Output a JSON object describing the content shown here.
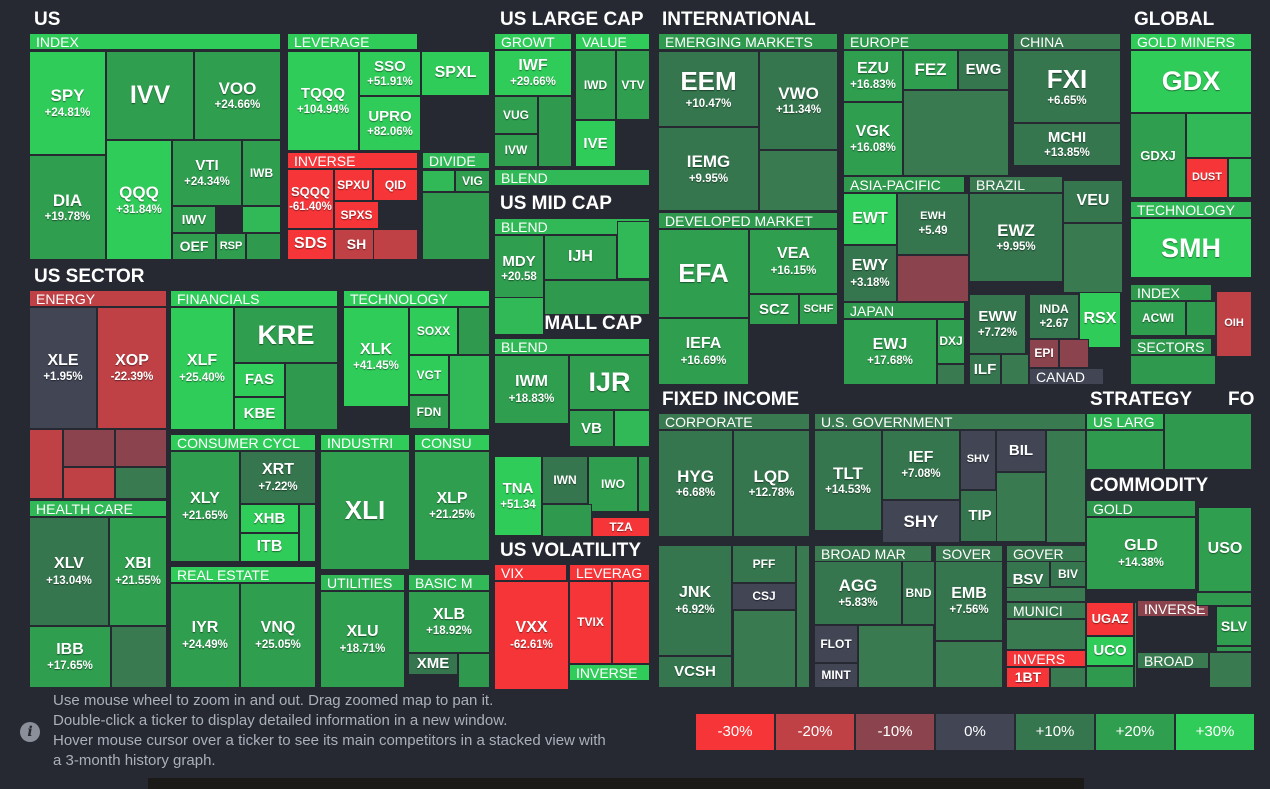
{
  "colors": {
    "bg": "#262932",
    "neg30": "#f63538",
    "neg20": "#bf4045",
    "neg10": "#8b444e",
    "zero": "#414554",
    "pos10": "#35764e",
    "pos20": "#2f9e4f",
    "pos30": "#30cc5a",
    "g1": "#3a7a50",
    "g2": "#2f9a4e",
    "g3": "#30b956",
    "g4": "#30cc5a"
  },
  "sections": [
    {
      "label": "US"
    },
    {
      "label": "US SECTOR"
    },
    {
      "label": "US LARGE CAP"
    },
    {
      "label": "US MID CAP"
    },
    {
      "label": "US SMALL CAP"
    },
    {
      "label": "US VOLATILITY"
    },
    {
      "label": "INTERNATIONAL"
    },
    {
      "label": "FIXED INCOME"
    },
    {
      "label": "GLOBAL"
    },
    {
      "label": "STRATEGY"
    },
    {
      "label": "FO"
    },
    {
      "label": "COMMODITY"
    }
  ],
  "subsections": [
    {
      "label": "INDEX"
    },
    {
      "label": "LEVERAGE"
    },
    {
      "label": "INVERSE"
    },
    {
      "label": "DIVIDE"
    },
    {
      "label": "ENERGY"
    },
    {
      "label": "FINANCIALS"
    },
    {
      "label": "TECHNOLOGY"
    },
    {
      "label": "CONSUMER CYCL"
    },
    {
      "label": "INDUSTRI"
    },
    {
      "label": "CONSU"
    },
    {
      "label": "HEALTH CARE"
    },
    {
      "label": "REAL ESTATE"
    },
    {
      "label": "UTILITIES"
    },
    {
      "label": "BASIC M"
    },
    {
      "label": "GROWT"
    },
    {
      "label": "VALUE"
    },
    {
      "label": "BLEND"
    },
    {
      "label": "BLEND"
    },
    {
      "label": "BLEND"
    },
    {
      "label": "VIX"
    },
    {
      "label": "LEVERAG"
    },
    {
      "label": "INVERSE"
    },
    {
      "label": "EMERGING MARKETS"
    },
    {
      "label": "EUROPE"
    },
    {
      "label": "CHINA"
    },
    {
      "label": "ASIA-PACIFIC"
    },
    {
      "label": "BRAZIL"
    },
    {
      "label": "DEVELOPED MARKET"
    },
    {
      "label": "JAPAN"
    },
    {
      "label": "CANAD"
    },
    {
      "label": "CORPORATE"
    },
    {
      "label": "U.S. GOVERNMENT"
    },
    {
      "label": "BROAD MAR"
    },
    {
      "label": "SOVER"
    },
    {
      "label": "GOVER"
    },
    {
      "label": "MUNICI"
    },
    {
      "label": "INVERS"
    },
    {
      "label": "GOLD MINERS"
    },
    {
      "label": "TECHNOLOGY"
    },
    {
      "label": "INDEX"
    },
    {
      "label": "SECTORS"
    },
    {
      "label": "US LARG"
    },
    {
      "label": "GOLD"
    },
    {
      "label": "INVERSE"
    },
    {
      "label": "BROAD"
    }
  ],
  "tiles": [
    {
      "t": "SPY",
      "p": "+24.81%",
      "c": "pos30"
    },
    {
      "t": "IVV",
      "p": "",
      "c": "pos20"
    },
    {
      "t": "VOO",
      "p": "+24.66%",
      "c": "pos20"
    },
    {
      "t": "DIA",
      "p": "+19.78%",
      "c": "pos20"
    },
    {
      "t": "QQQ",
      "p": "+31.84%",
      "c": "pos30"
    },
    {
      "t": "VTI",
      "p": "+24.34%",
      "c": "pos20"
    },
    {
      "t": "IWB",
      "p": "",
      "c": "pos20"
    },
    {
      "t": "IWV",
      "p": "",
      "c": "pos20"
    },
    {
      "t": "OEF",
      "p": "",
      "c": "pos20"
    },
    {
      "t": "RSP",
      "p": "",
      "c": "pos20"
    },
    {
      "t": "TQQQ",
      "p": "+104.94%",
      "c": "pos30"
    },
    {
      "t": "SSO",
      "p": "+51.91%",
      "c": "pos30"
    },
    {
      "t": "UPRO",
      "p": "+82.06%",
      "c": "pos30"
    },
    {
      "t": "SPXL",
      "p": "",
      "c": "pos30"
    },
    {
      "t": "SQQQ",
      "p": "-61.40%",
      "c": "neg30"
    },
    {
      "t": "SPXU",
      "p": "",
      "c": "neg30"
    },
    {
      "t": "QID",
      "p": "",
      "c": "neg30"
    },
    {
      "t": "SPXS",
      "p": "",
      "c": "neg30"
    },
    {
      "t": "SDS",
      "p": "",
      "c": "neg30"
    },
    {
      "t": "SH",
      "p": "",
      "c": "neg20"
    },
    {
      "t": "VIG",
      "p": "",
      "c": "pos20"
    },
    {
      "t": "XLE",
      "p": "+1.95%",
      "c": "zero"
    },
    {
      "t": "XOP",
      "p": "-22.39%",
      "c": "neg20"
    },
    {
      "t": "XLF",
      "p": "+25.40%",
      "c": "pos30"
    },
    {
      "t": "KRE",
      "p": "",
      "c": "pos20"
    },
    {
      "t": "FAS",
      "p": "",
      "c": "pos30"
    },
    {
      "t": "KBE",
      "p": "",
      "c": "pos30"
    },
    {
      "t": "XLK",
      "p": "+41.45%",
      "c": "pos30"
    },
    {
      "t": "SOXX",
      "p": "",
      "c": "pos30"
    },
    {
      "t": "VGT",
      "p": "",
      "c": "pos30"
    },
    {
      "t": "FDN",
      "p": "",
      "c": "pos20"
    },
    {
      "t": "XLY",
      "p": "+21.65%",
      "c": "pos20"
    },
    {
      "t": "XRT",
      "p": "+7.22%",
      "c": "pos10"
    },
    {
      "t": "XHB",
      "p": "",
      "c": "pos30"
    },
    {
      "t": "ITB",
      "p": "",
      "c": "pos30"
    },
    {
      "t": "XLI",
      "p": "",
      "c": "pos20"
    },
    {
      "t": "XLP",
      "p": "+21.25%",
      "c": "pos20"
    },
    {
      "t": "XLV",
      "p": "+13.04%",
      "c": "pos10"
    },
    {
      "t": "XBI",
      "p": "+21.55%",
      "c": "pos20"
    },
    {
      "t": "IBB",
      "p": "+17.65%",
      "c": "pos20"
    },
    {
      "t": "IYR",
      "p": "+24.49%",
      "c": "pos20"
    },
    {
      "t": "VNQ",
      "p": "+25.05%",
      "c": "pos20"
    },
    {
      "t": "XLU",
      "p": "+18.71%",
      "c": "pos20"
    },
    {
      "t": "XLB",
      "p": "+18.92%",
      "c": "pos20"
    },
    {
      "t": "XME",
      "p": "",
      "c": "pos10"
    },
    {
      "t": "IWF",
      "p": "+29.66%",
      "c": "pos30"
    },
    {
      "t": "VUG",
      "p": "",
      "c": "pos20"
    },
    {
      "t": "IVW",
      "p": "",
      "c": "pos20"
    },
    {
      "t": "IWD",
      "p": "",
      "c": "pos20"
    },
    {
      "t": "VTV",
      "p": "",
      "c": "pos20"
    },
    {
      "t": "IVE",
      "p": "",
      "c": "pos30"
    },
    {
      "t": "MDY",
      "p": "+20.58",
      "c": "pos20"
    },
    {
      "t": "IJH",
      "p": "",
      "c": "pos20"
    },
    {
      "t": "IWM",
      "p": "+18.83%",
      "c": "pos20"
    },
    {
      "t": "IJR",
      "p": "",
      "c": "pos20"
    },
    {
      "t": "VB",
      "p": "",
      "c": "pos20"
    },
    {
      "t": "TNA",
      "p": "+51.34",
      "c": "pos30"
    },
    {
      "t": "IWN",
      "p": "",
      "c": "pos10"
    },
    {
      "t": "IWO",
      "p": "",
      "c": "pos20"
    },
    {
      "t": "TZA",
      "p": "",
      "c": "neg30"
    },
    {
      "t": "VXX",
      "p": "-62.61%",
      "c": "neg30"
    },
    {
      "t": "TVIX",
      "p": "",
      "c": "neg30"
    },
    {
      "t": "EEM",
      "p": "+10.47%",
      "c": "pos10"
    },
    {
      "t": "VWO",
      "p": "+11.34%",
      "c": "pos10"
    },
    {
      "t": "IEMG",
      "p": "+9.95%",
      "c": "pos10"
    },
    {
      "t": "EZU",
      "p": "+16.83%",
      "c": "pos20"
    },
    {
      "t": "FEZ",
      "p": "",
      "c": "pos20"
    },
    {
      "t": "EWG",
      "p": "",
      "c": "pos10"
    },
    {
      "t": "VGK",
      "p": "+16.08%",
      "c": "pos20"
    },
    {
      "t": "FXI",
      "p": "+6.65%",
      "c": "pos10"
    },
    {
      "t": "MCHI",
      "p": "+13.85%",
      "c": "pos10"
    },
    {
      "t": "EWT",
      "p": "",
      "c": "pos30"
    },
    {
      "t": "EWH",
      "p": "+5.49",
      "c": "pos10"
    },
    {
      "t": "EWY",
      "p": "+3.18%",
      "c": "pos10"
    },
    {
      "t": "EWZ",
      "p": "+9.95%",
      "c": "pos10"
    },
    {
      "t": "VEU",
      "p": "",
      "c": "pos10"
    },
    {
      "t": "EFA",
      "p": "",
      "c": "pos20"
    },
    {
      "t": "VEA",
      "p": "+16.15%",
      "c": "pos20"
    },
    {
      "t": "IEFA",
      "p": "+16.69%",
      "c": "pos20"
    },
    {
      "t": "SCZ",
      "p": "",
      "c": "pos20"
    },
    {
      "t": "SCHF",
      "p": "",
      "c": "pos20"
    },
    {
      "t": "EWJ",
      "p": "+17.68%",
      "c": "pos20"
    },
    {
      "t": "DXJ",
      "p": "",
      "c": "pos20"
    },
    {
      "t": "EWW",
      "p": "+7.72%",
      "c": "pos10"
    },
    {
      "t": "INDA",
      "p": "+2.67",
      "c": "pos10"
    },
    {
      "t": "RSX",
      "p": "",
      "c": "pos30"
    },
    {
      "t": "EPI",
      "p": "",
      "c": "neg10"
    },
    {
      "t": "ILF",
      "p": "",
      "c": "pos10"
    },
    {
      "t": "HYG",
      "p": "+6.68%",
      "c": "pos10"
    },
    {
      "t": "LQD",
      "p": "+12.78%",
      "c": "pos10"
    },
    {
      "t": "PFF",
      "p": "",
      "c": "pos10"
    },
    {
      "t": "JNK",
      "p": "+6.92%",
      "c": "pos10"
    },
    {
      "t": "CSJ",
      "p": "",
      "c": "zero"
    },
    {
      "t": "VCSH",
      "p": "",
      "c": "pos10"
    },
    {
      "t": "TLT",
      "p": "+14.53%",
      "c": "pos10"
    },
    {
      "t": "IEF",
      "p": "+7.08%",
      "c": "pos10"
    },
    {
      "t": "SHY",
      "p": "",
      "c": "zero"
    },
    {
      "t": "SHV",
      "p": "",
      "c": "zero"
    },
    {
      "t": "BIL",
      "p": "",
      "c": "zero"
    },
    {
      "t": "TIP",
      "p": "",
      "c": "pos10"
    },
    {
      "t": "AGG",
      "p": "+5.83%",
      "c": "pos10"
    },
    {
      "t": "BND",
      "p": "",
      "c": "pos10"
    },
    {
      "t": "FLOT",
      "p": "",
      "c": "zero"
    },
    {
      "t": "MINT",
      "p": "",
      "c": "zero"
    },
    {
      "t": "EMB",
      "p": "+7.56%",
      "c": "pos10"
    },
    {
      "t": "BSV",
      "p": "",
      "c": "pos10"
    },
    {
      "t": "BIV",
      "p": "",
      "c": "pos10"
    },
    {
      "t": "1BT",
      "p": "",
      "c": "neg30"
    },
    {
      "t": "GDX",
      "p": "",
      "c": "pos30"
    },
    {
      "t": "GDXJ",
      "p": "",
      "c": "pos20"
    },
    {
      "t": "DUST",
      "p": "",
      "c": "neg30"
    },
    {
      "t": "SMH",
      "p": "",
      "c": "pos30"
    },
    {
      "t": "ACWI",
      "p": "",
      "c": "pos20"
    },
    {
      "t": "OIH",
      "p": "",
      "c": "neg20"
    },
    {
      "t": "GLD",
      "p": "+14.38%",
      "c": "pos20"
    },
    {
      "t": "USO",
      "p": "",
      "c": "pos20"
    },
    {
      "t": "UGAZ",
      "p": "",
      "c": "neg30"
    },
    {
      "t": "UCO",
      "p": "",
      "c": "pos30"
    },
    {
      "t": "SLV",
      "p": "",
      "c": "pos20"
    }
  ],
  "footer": {
    "info_icon": "i",
    "line1": "Use mouse wheel to zoom in and out. Drag zoomed map to pan it.",
    "line2": "Double-click a ticker to display detailed information in a new window.",
    "line3": "Hover mouse cursor over a ticker to see its main competitors in a stacked view with",
    "line4": "a 3-month history graph."
  },
  "legend": [
    {
      "label": "-30%",
      "c": "neg30"
    },
    {
      "label": "-20%",
      "c": "neg20"
    },
    {
      "label": "-10%",
      "c": "neg10"
    },
    {
      "label": "0%",
      "c": "zero"
    },
    {
      "label": "+10%",
      "c": "pos10"
    },
    {
      "label": "+20%",
      "c": "pos20"
    },
    {
      "label": "+30%",
      "c": "pos30"
    }
  ]
}
